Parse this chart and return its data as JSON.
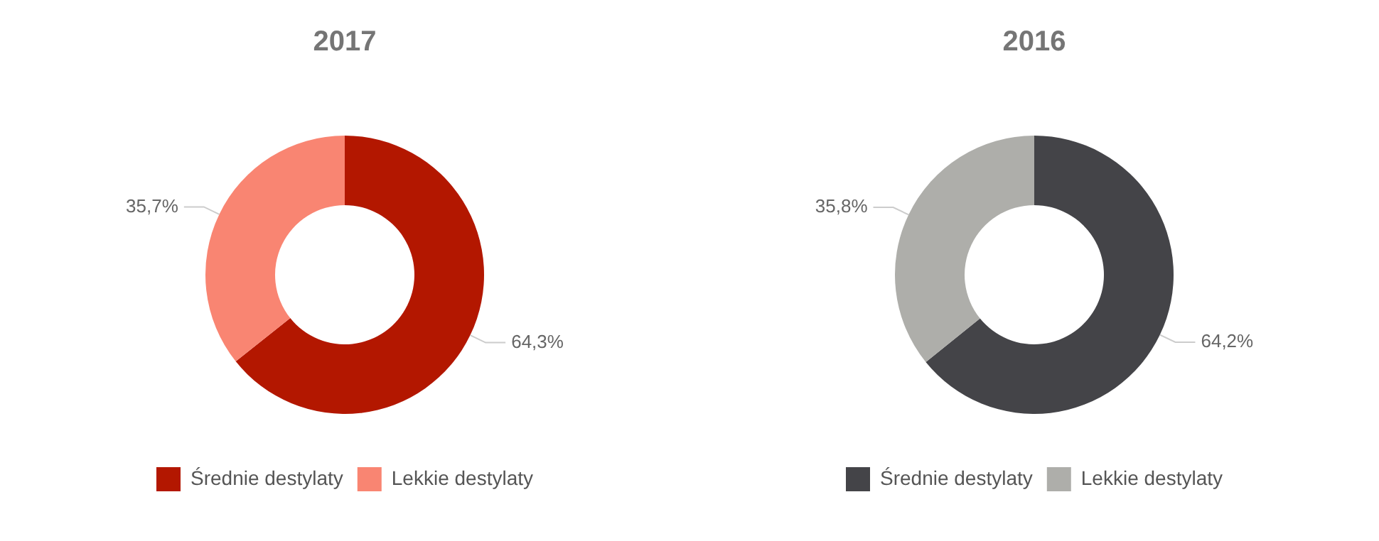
{
  "chart_data": [
    {
      "type": "donut",
      "title": "2017",
      "categories": [
        "Średnie destylaty",
        "Lekkie destylaty"
      ],
      "values": [
        64.3,
        35.7
      ],
      "colors": [
        "#b31700",
        "#f98572"
      ],
      "value_labels": [
        "64,3%",
        "35,7%"
      ],
      "legend": "bottom"
    },
    {
      "type": "donut",
      "title": "2016",
      "categories": [
        "Średnie destylaty",
        "Lekkie destylaty"
      ],
      "values": [
        64.2,
        35.8
      ],
      "colors": [
        "#444448",
        "#aeaeaa"
      ],
      "value_labels": [
        "64,2%",
        "35,8%"
      ],
      "legend": "bottom"
    }
  ]
}
